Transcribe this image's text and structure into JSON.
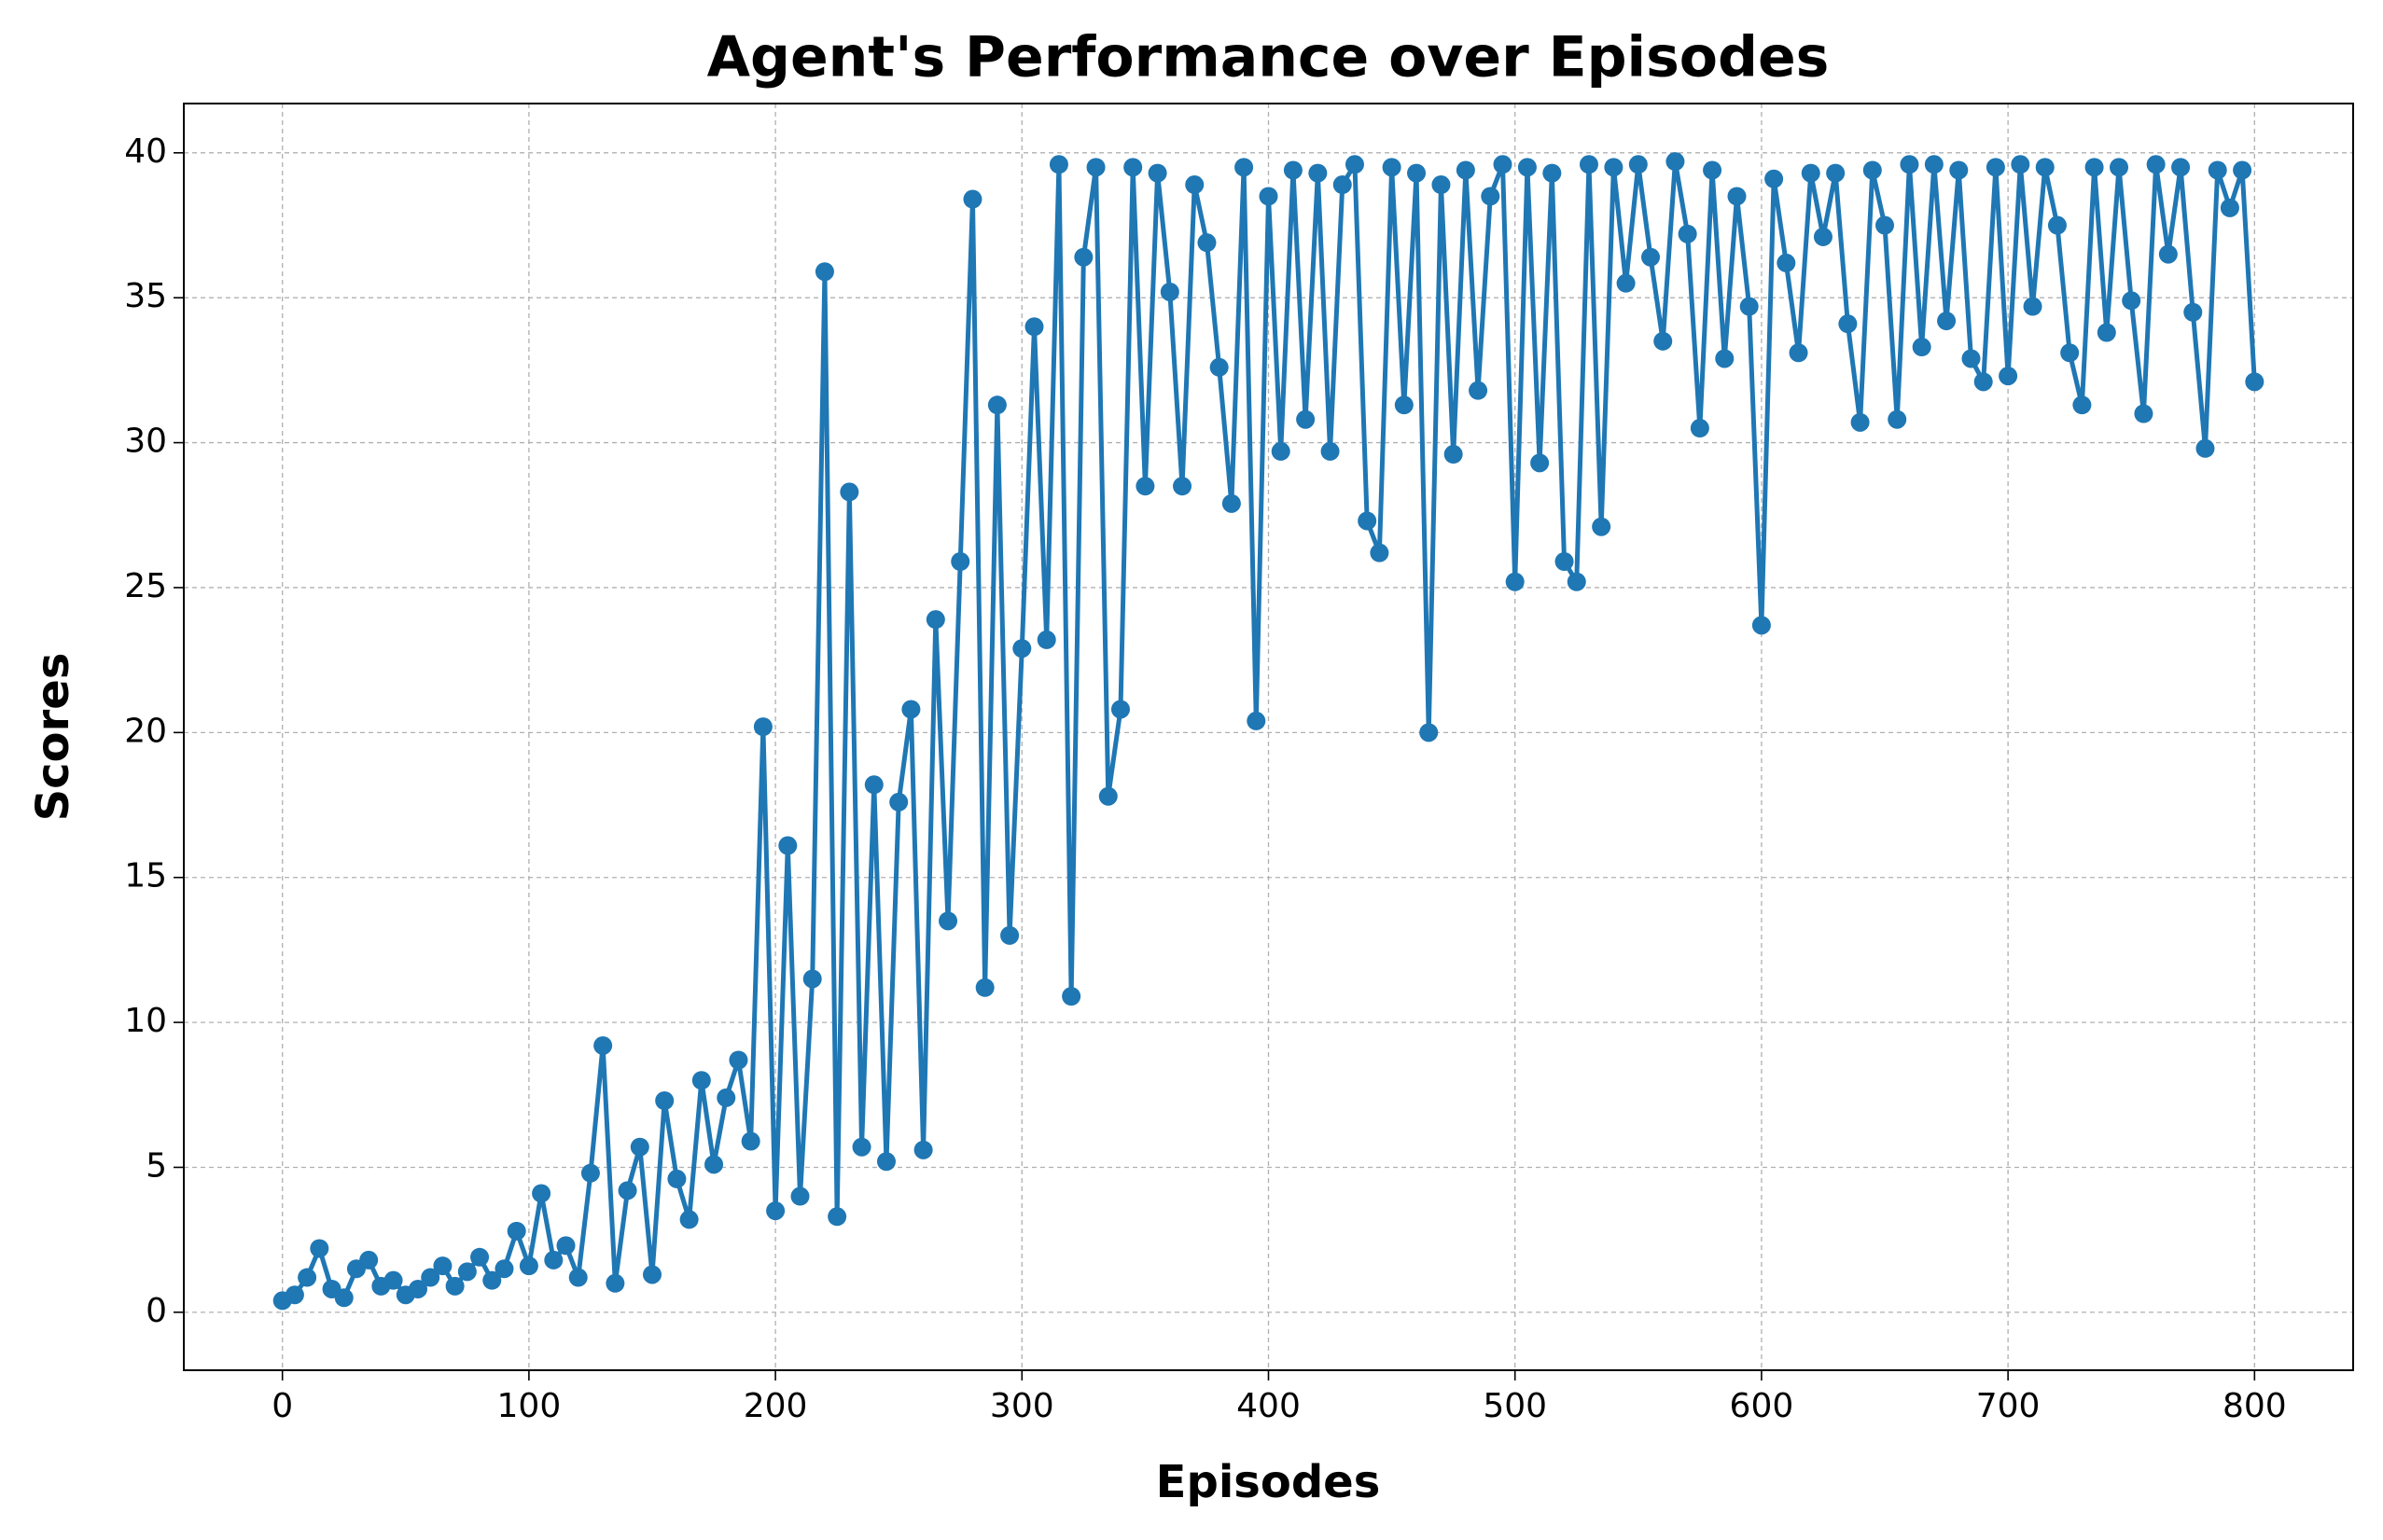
{
  "chart_data": {
    "type": "line",
    "title": "Agent's Performance over Episodes",
    "x_label": "Episodes",
    "y_label": "Scores",
    "x": [
      0,
      5,
      10,
      15,
      20,
      25,
      30,
      35,
      40,
      45,
      50,
      55,
      60,
      65,
      70,
      75,
      80,
      85,
      90,
      95,
      100,
      105,
      110,
      115,
      120,
      125,
      130,
      135,
      140,
      145,
      150,
      155,
      160,
      165,
      170,
      175,
      180,
      185,
      190,
      195,
      200,
      205,
      210,
      215,
      220,
      225,
      230,
      235,
      240,
      245,
      250,
      255,
      260,
      265,
      270,
      275,
      280,
      285,
      290,
      295,
      300,
      305,
      310,
      315,
      320,
      325,
      330,
      335,
      340,
      345,
      350,
      355,
      360,
      365,
      370,
      375,
      380,
      385,
      390,
      395,
      400,
      405,
      410,
      415,
      420,
      425,
      430,
      435,
      440,
      445,
      450,
      455,
      460,
      465,
      470,
      475,
      480,
      485,
      490,
      495,
      500,
      505,
      510,
      515,
      520,
      525,
      530,
      535,
      540,
      545,
      550,
      555,
      560,
      565,
      570,
      575,
      580,
      585,
      590,
      595,
      600,
      605,
      610,
      615,
      620,
      625,
      630,
      635,
      640,
      645,
      650,
      655,
      660,
      665,
      670,
      675,
      680,
      685,
      690,
      695,
      700,
      705,
      710,
      715,
      720,
      725,
      730,
      735,
      740,
      745,
      750,
      755,
      760,
      765,
      770,
      775,
      780,
      785,
      790,
      795,
      800
    ],
    "series": [
      {
        "name": "Scores",
        "color": "#1f77b4",
        "values": [
          0.4,
          0.6,
          1.2,
          2.2,
          0.8,
          0.5,
          1.5,
          1.8,
          0.9,
          1.1,
          0.6,
          0.8,
          1.2,
          1.6,
          0.9,
          1.4,
          1.9,
          1.1,
          1.5,
          2.8,
          1.6,
          4.1,
          1.8,
          2.3,
          1.2,
          4.8,
          9.2,
          1.0,
          4.2,
          5.7,
          1.3,
          7.3,
          4.6,
          3.2,
          8.0,
          5.1,
          7.4,
          8.7,
          5.9,
          20.2,
          3.5,
          16.1,
          4.0,
          11.5,
          35.9,
          3.3,
          28.3,
          5.7,
          18.2,
          5.2,
          17.6,
          20.8,
          5.6,
          23.9,
          13.5,
          25.9,
          38.4,
          11.2,
          31.3,
          13.0,
          22.9,
          34.0,
          23.2,
          39.6,
          10.9,
          36.4,
          39.5,
          17.8,
          20.8,
          39.5,
          28.5,
          39.3,
          35.2,
          28.5,
          38.9,
          36.9,
          32.6,
          27.9,
          39.5,
          20.4,
          38.5,
          29.7,
          39.4,
          30.8,
          39.3,
          29.7,
          38.9,
          39.6,
          27.3,
          26.2,
          39.5,
          31.3,
          39.3,
          20.0,
          38.9,
          29.6,
          39.4,
          31.8,
          38.5,
          39.6,
          25.2,
          39.5,
          29.3,
          39.3,
          25.9,
          25.2,
          39.6,
          27.1,
          39.5,
          35.5,
          39.6,
          36.4,
          33.5,
          39.7,
          37.2,
          30.5,
          39.4,
          32.9,
          38.5,
          34.7,
          23.7,
          39.1,
          36.2,
          33.1,
          39.3,
          37.1,
          39.3,
          34.1,
          30.7,
          39.4,
          37.5,
          30.8,
          39.6,
          33.3,
          39.6,
          34.2,
          39.4,
          32.9,
          32.1,
          39.5,
          32.3,
          39.6,
          34.7,
          39.5,
          37.5,
          33.1,
          31.3,
          39.5,
          33.8,
          39.5,
          34.9,
          31.0,
          39.6,
          36.5,
          39.5,
          34.5,
          29.8,
          39.4,
          38.1,
          39.4,
          32.1
        ]
      }
    ],
    "xlim": [
      -40,
      840
    ],
    "ylim": [
      -2,
      41.7
    ],
    "xticks": [
      0,
      100,
      200,
      300,
      400,
      500,
      600,
      700,
      800
    ],
    "yticks": [
      0,
      5,
      10,
      15,
      20,
      25,
      30,
      35,
      40
    ],
    "grid": true,
    "markers": true
  }
}
